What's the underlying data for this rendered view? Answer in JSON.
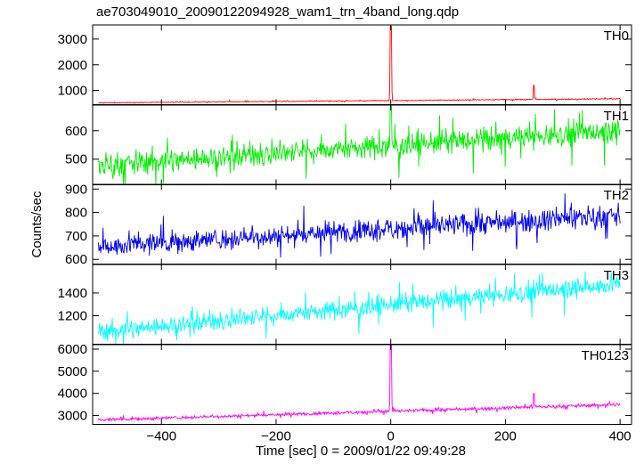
{
  "chart_data": {
    "type": "line",
    "title": "ae703049010_20090122094928_wam1_trn_4band_long.qdp",
    "xlabel": "Time [sec] 0 = 2009/01/22 09:49:28",
    "ylabel": "Counts/sec",
    "xlim": [
      -520,
      420
    ],
    "x_ticks": [
      -400,
      -200,
      0,
      200,
      400
    ],
    "x_tick_labels": [
      "−400",
      "−200",
      "0",
      "200",
      "400"
    ],
    "x_range": [
      -510,
      400
    ],
    "grid": false,
    "panels": [
      {
        "name": "TH0",
        "color": "#ff0000",
        "ylim": [
          450,
          3550
        ],
        "y_ticks": [
          1000,
          2000,
          3000
        ],
        "base_start": 520,
        "base_end": 680,
        "noise": 18,
        "spikes": [
          {
            "x": 0,
            "peak": 3500
          },
          {
            "x": 250,
            "peak": 1200
          }
        ]
      },
      {
        "name": "TH1",
        "color": "#00ee00",
        "ylim": [
          410,
          690
        ],
        "y_ticks": [
          500,
          600
        ],
        "base_start": 480,
        "base_end": 600,
        "noise": 40,
        "spikes": [
          {
            "x": 0,
            "peak": 690
          }
        ]
      },
      {
        "name": "TH2",
        "color": "#0000ee",
        "ylim": [
          580,
          920
        ],
        "y_ticks": [
          600,
          700,
          800,
          900
        ],
        "base_start": 655,
        "base_end": 790,
        "noise": 45,
        "spikes": []
      },
      {
        "name": "TH3",
        "color": "#00ffff",
        "ylim": [
          950,
          1650
        ],
        "y_ticks": [
          1200,
          1400
        ],
        "base_start": 1060,
        "base_end": 1480,
        "noise": 80,
        "spikes": []
      },
      {
        "name": "TH0123",
        "color": "#ff00ff",
        "ylim": [
          2600,
          6200
        ],
        "y_ticks": [
          3000,
          4000,
          5000,
          6000
        ],
        "base_start": 2800,
        "base_end": 3500,
        "noise": 70,
        "spikes": [
          {
            "x": 0,
            "peak": 6200
          },
          {
            "x": 250,
            "peak": 4000
          }
        ]
      }
    ]
  }
}
